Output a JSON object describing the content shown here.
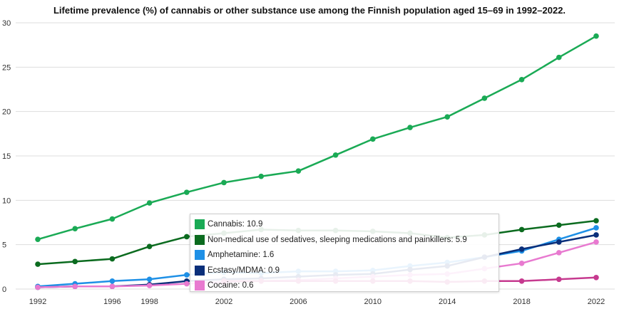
{
  "chart_data": {
    "type": "line",
    "title": "Lifetime prevalence (%) of cannabis or other substance use among the Finnish population aged 15–69 in 1992–2022.",
    "xlabel": "",
    "ylabel": "",
    "x": [
      1992,
      1994,
      1996,
      1998,
      2000,
      2002,
      2004,
      2006,
      2008,
      2010,
      2012,
      2014,
      2016,
      2018,
      2020,
      2022
    ],
    "x_ticks": [
      1992,
      1996,
      1998,
      2002,
      2006,
      2010,
      2014,
      2018,
      2022
    ],
    "ylim": [
      0,
      30
    ],
    "y_ticks": [
      0,
      5,
      10,
      15,
      20,
      25,
      30
    ],
    "grid": true,
    "series": [
      {
        "name": "Cannabis",
        "color": "#1aaa55",
        "values": [
          5.6,
          6.8,
          7.9,
          9.7,
          10.9,
          12.0,
          12.7,
          13.3,
          15.1,
          16.9,
          18.2,
          19.4,
          21.5,
          23.6,
          26.1,
          28.5
        ]
      },
      {
        "name": "Non-medical use of sedatives, sleeping medications and painkillers",
        "color": "#0b6b1f",
        "values": [
          2.8,
          3.1,
          3.4,
          4.8,
          5.9,
          6.3,
          6.7,
          6.6,
          6.6,
          6.5,
          6.3,
          5.8,
          6.1,
          6.7,
          7.2,
          7.7
        ]
      },
      {
        "name": "Amphetamine",
        "color": "#1e90e6",
        "values": [
          0.3,
          0.6,
          0.9,
          1.1,
          1.6,
          1.9,
          1.8,
          2.0,
          2.0,
          2.1,
          2.6,
          3.0,
          3.6,
          4.3,
          5.6,
          6.9
        ]
      },
      {
        "name": "Ecstasy/MDMA",
        "color": "#0a2f7a",
        "values": [
          0.2,
          0.3,
          0.3,
          0.5,
          0.9,
          1.1,
          1.2,
          1.4,
          1.6,
          1.7,
          2.2,
          2.6,
          3.6,
          4.5,
          5.3,
          6.1
        ]
      },
      {
        "name": "Cocaine",
        "color": "#e87ad0",
        "values": [
          0.2,
          0.3,
          0.3,
          0.4,
          0.6,
          0.8,
          0.9,
          1.0,
          1.2,
          1.4,
          1.6,
          1.7,
          2.3,
          2.9,
          4.1,
          5.3
        ]
      },
      {
        "name": "",
        "color": "#c63a8f",
        "values": [
          null,
          null,
          null,
          null,
          null,
          0.9,
          0.9,
          0.9,
          0.9,
          0.9,
          0.9,
          0.8,
          0.9,
          0.9,
          1.1,
          1.3
        ]
      }
    ]
  },
  "tooltip": {
    "rows": [
      {
        "text": "Cannabis: 10.9",
        "color": "#1aaa55"
      },
      {
        "text": "Non-medical use of sedatives, sleeping medications and painkillers: 5.9",
        "color": "#0b6b1f"
      },
      {
        "text": "Amphetamine: 1.6",
        "color": "#1e90e6"
      },
      {
        "text": "Ecstasy/MDMA: 0.9",
        "color": "#0a2f7a"
      },
      {
        "text": "Cocaine: 0.6",
        "color": "#e87ad0"
      }
    ]
  }
}
